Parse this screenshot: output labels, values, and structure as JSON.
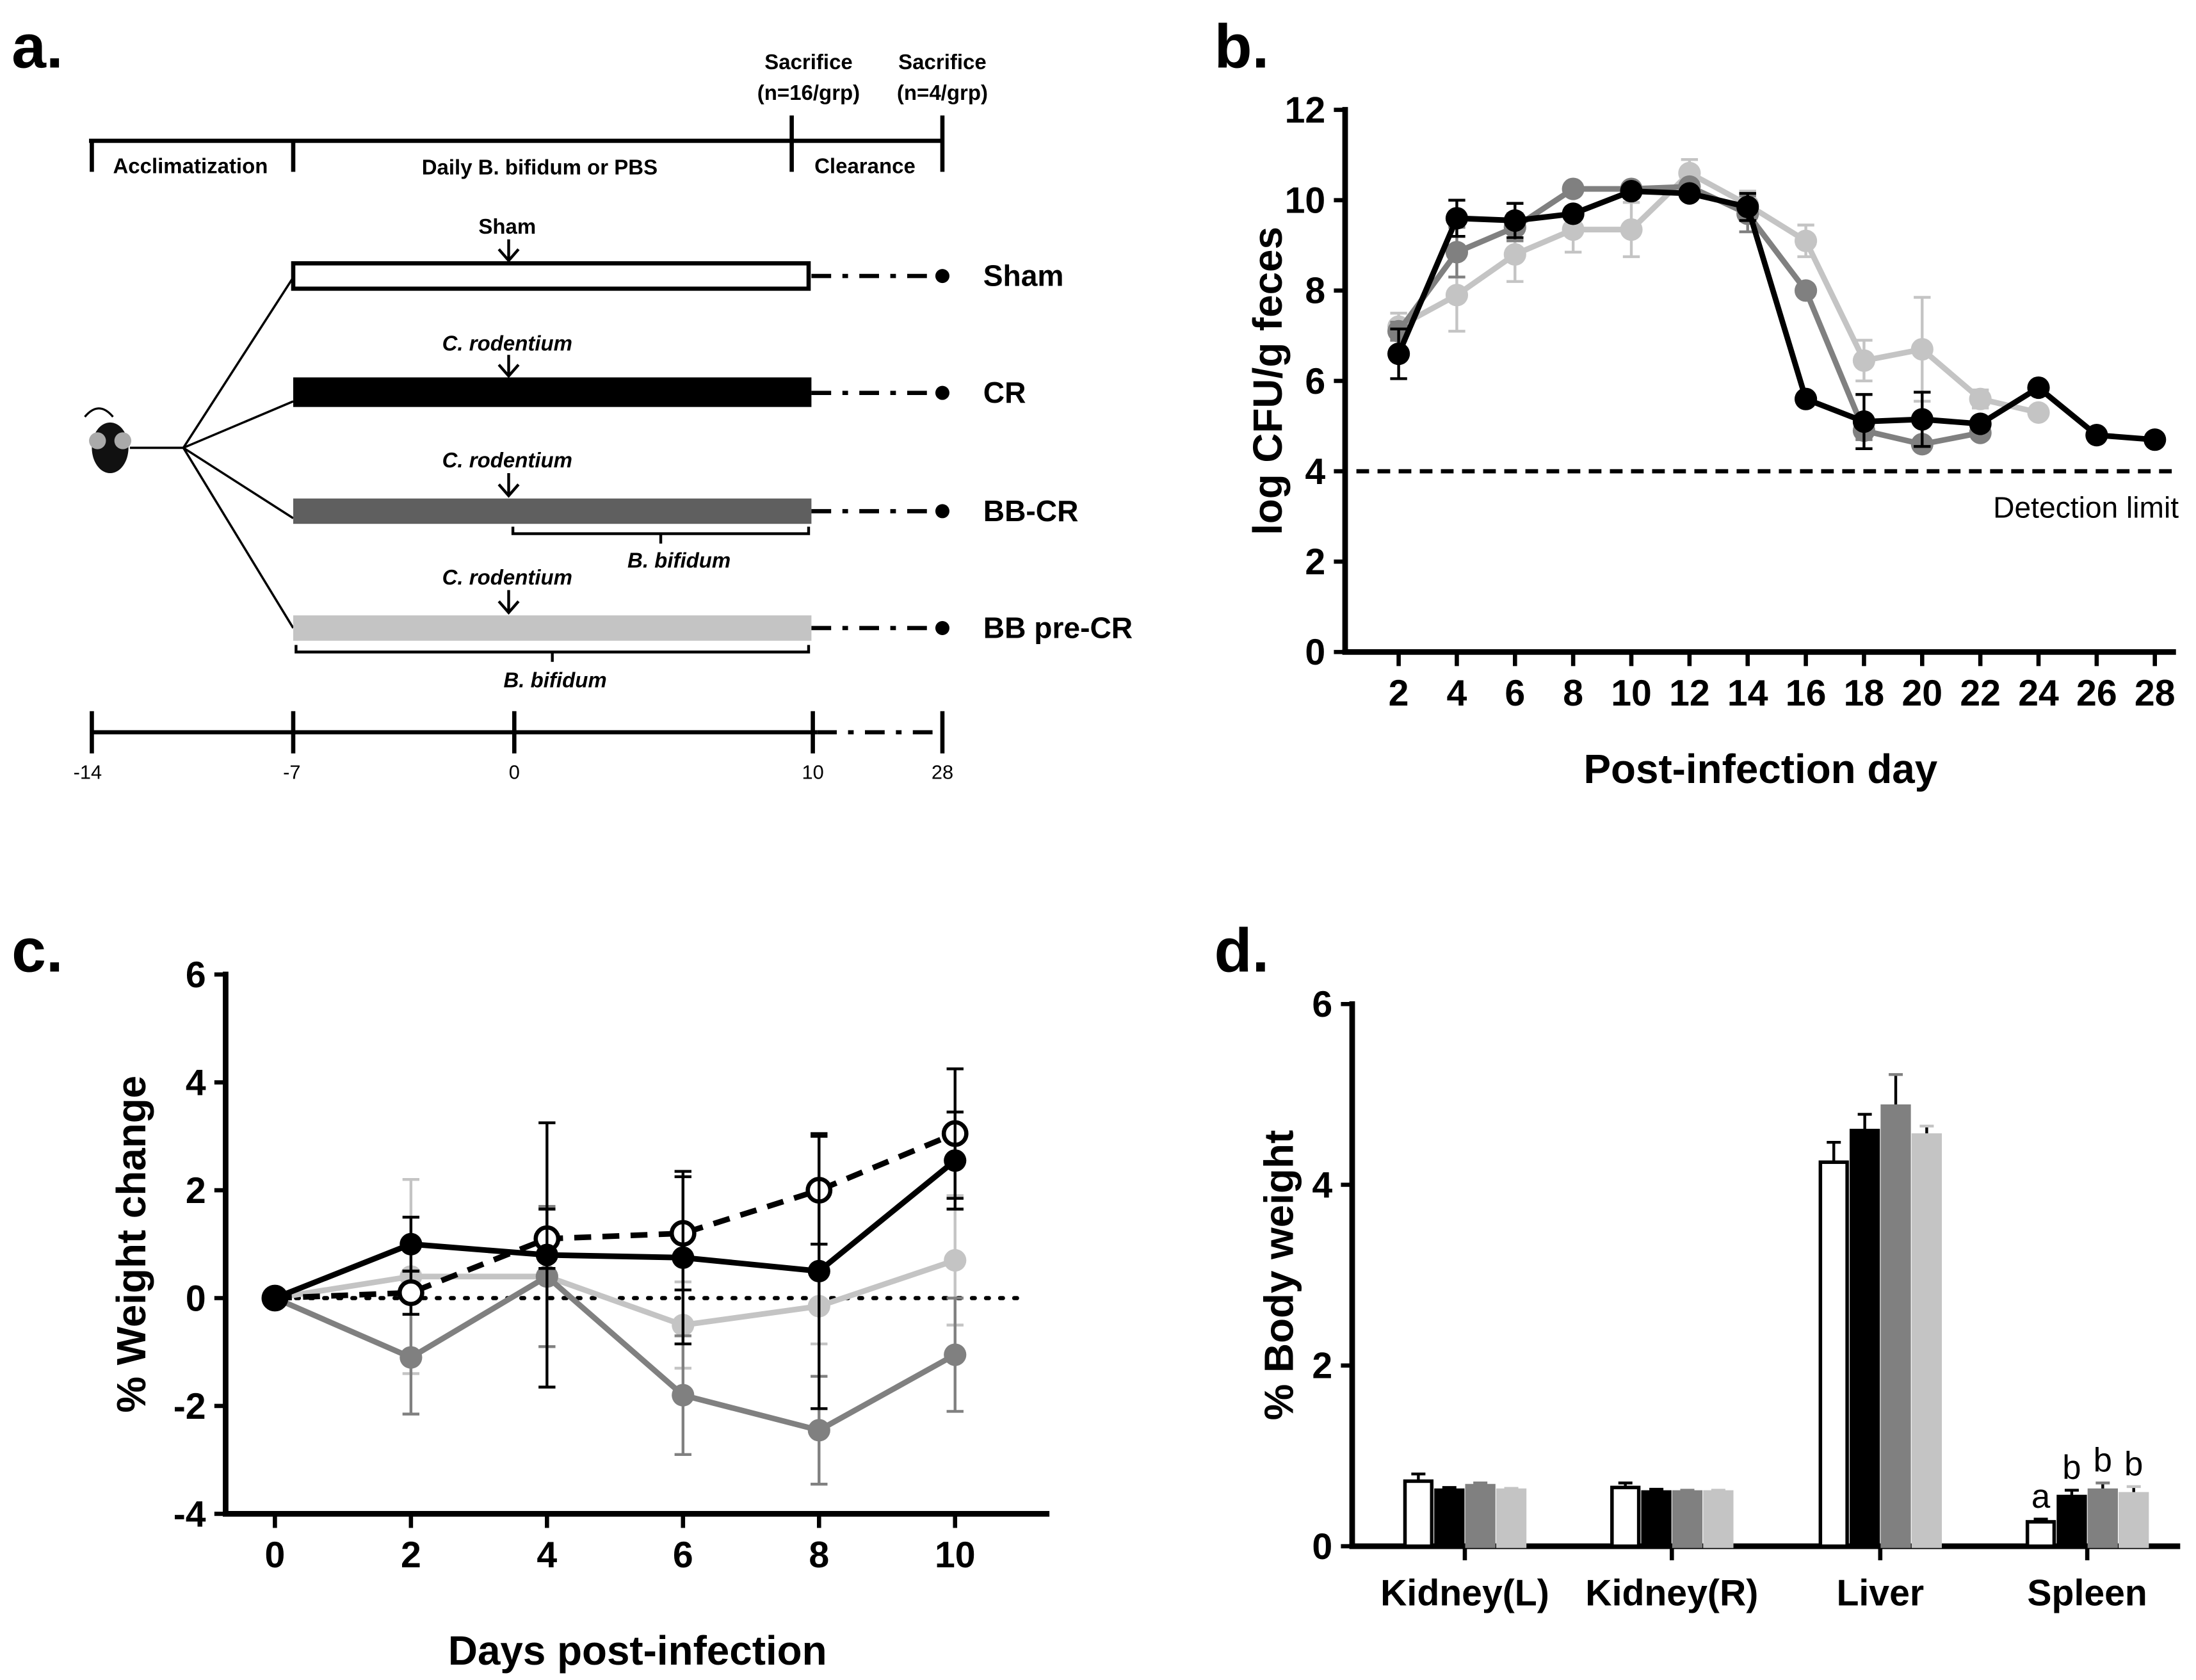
{
  "panel_labels": {
    "a": "a.",
    "b": "b.",
    "c": "c.",
    "d": "d."
  },
  "colors": {
    "sham": "#ffffff",
    "cr": "#000000",
    "bbcr": "#808080",
    "bbprecr": "#c4c4c4"
  },
  "schematic": {
    "sacrifice1": "Sacrifice",
    "sacrifice1_n": "(n=16/grp)",
    "sacrifice2": "Sacrifice",
    "sacrifice2_n": "(n=4/grp)",
    "phase_acclimatization": "Acclimatization",
    "phase_daily": "Daily B. bifidum or PBS",
    "phase_clearance": "Clearance",
    "arrow_sham": "Sham",
    "arrow_cr": "C. rodentium",
    "arrow_bbcr": "C. rodentium",
    "arrow_bbprecr": "C. rodentium",
    "bracket_bbcr": "B. bifidum",
    "bracket_bbprecr": "B. bifidum",
    "groups": [
      "Sham",
      "CR",
      "BB-CR",
      "BB pre-CR"
    ],
    "timeline_ticks": [
      "-14",
      "-7",
      "0",
      "10",
      "28"
    ]
  },
  "chart_data": [
    {
      "id": "b",
      "type": "line",
      "xlabel": "Post-infection day",
      "ylabel": "log CFU/g feces",
      "ylim": [
        0,
        12
      ],
      "yticks": [
        0,
        2,
        4,
        6,
        8,
        10,
        12
      ],
      "xticks": [
        2,
        4,
        6,
        8,
        10,
        12,
        14,
        16,
        18,
        20,
        22,
        24,
        26,
        28
      ],
      "annotation": "Detection limit",
      "reference_line": 4,
      "series": [
        {
          "name": "BB pre-CR",
          "color": "#c4c4c4",
          "x": [
            2,
            4,
            6,
            8,
            10,
            12,
            14,
            16,
            18,
            20,
            22,
            24
          ],
          "y": [
            7.2,
            7.9,
            8.8,
            9.35,
            9.35,
            10.6,
            9.9,
            9.1,
            6.45,
            6.7,
            5.6,
            5.3
          ],
          "err": [
            0.3,
            0.8,
            0.6,
            0.5,
            0.6,
            0.3,
            0.3,
            0.35,
            0.45,
            1.15,
            0.2,
            0.1
          ]
        },
        {
          "name": "BB-CR",
          "color": "#808080",
          "x": [
            2,
            4,
            6,
            8,
            10,
            12,
            14,
            16,
            18,
            20,
            22
          ],
          "y": [
            7.1,
            8.85,
            9.4,
            10.25,
            10.25,
            10.3,
            9.7,
            8.0,
            4.9,
            4.6,
            4.85
          ],
          "err": [
            0.2,
            0.55,
            0.3,
            0.1,
            0.1,
            0.1,
            0.4,
            0.1,
            0.2,
            0.1,
            0.1
          ]
        },
        {
          "name": "CR",
          "color": "#000000",
          "x": [
            2,
            4,
            6,
            8,
            10,
            12,
            14,
            16,
            18,
            20,
            22,
            24,
            26,
            28
          ],
          "y": [
            6.6,
            9.6,
            9.55,
            9.7,
            10.2,
            10.15,
            9.85,
            5.6,
            5.1,
            5.15,
            5.05,
            5.85,
            4.8,
            4.7
          ],
          "err": [
            0.55,
            0.4,
            0.38,
            0.1,
            0.1,
            0.1,
            0.3,
            0.05,
            0.6,
            0.6,
            0.05,
            0.05,
            0.05,
            0.05
          ]
        }
      ]
    },
    {
      "id": "c",
      "type": "line",
      "xlabel": "Days post-infection",
      "ylabel": "% Weight change",
      "ylim": [
        -4,
        6
      ],
      "yticks": [
        -4,
        -2,
        0,
        2,
        4,
        6
      ],
      "xticks": [
        0,
        2,
        4,
        6,
        8,
        10
      ],
      "reference_line": 0,
      "series": [
        {
          "name": "BB pre-CR",
          "color": "#c4c4c4",
          "marker": "filled",
          "dash": false,
          "x": [
            0,
            2,
            4,
            6,
            8,
            10
          ],
          "y": [
            0,
            0.4,
            0.4,
            -0.5,
            -0.15,
            0.7
          ],
          "err": [
            0,
            1.8,
            1.3,
            0.8,
            0.7,
            1.2
          ]
        },
        {
          "name": "BB-CR",
          "color": "#808080",
          "marker": "filled",
          "dash": false,
          "x": [
            0,
            2,
            4,
            6,
            8,
            10
          ],
          "y": [
            0,
            -1.1,
            0.4,
            -1.8,
            -2.45,
            -1.05
          ],
          "err": [
            0,
            1.05,
            1.3,
            1.1,
            1.0,
            1.05
          ]
        },
        {
          "name": "Sham",
          "color": "#000000",
          "marker": "open",
          "dash": true,
          "x": [
            0,
            2,
            4,
            6,
            8,
            10
          ],
          "y": [
            0,
            0.1,
            1.1,
            1.2,
            2.0,
            3.05
          ],
          "err": [
            0,
            0.4,
            0.55,
            1.05,
            1.0,
            1.2
          ]
        },
        {
          "name": "CR",
          "color": "#000000",
          "marker": "filled",
          "dash": false,
          "x": [
            0,
            2,
            4,
            6,
            8,
            10
          ],
          "y": [
            0,
            1.0,
            0.8,
            0.75,
            0.5,
            2.55
          ],
          "err": [
            0,
            0.5,
            2.45,
            1.6,
            2.55,
            0.9
          ]
        }
      ]
    },
    {
      "id": "d",
      "type": "bar",
      "xlabel": "",
      "ylabel": "% Body weight",
      "ylim": [
        0,
        6
      ],
      "yticks": [
        0,
        2,
        4,
        6
      ],
      "categories": [
        "Kidney(L)",
        "Kidney(R)",
        "Liver",
        "Spleen"
      ],
      "series": [
        {
          "name": "Sham",
          "color": "#ffffff",
          "values": [
            0.72,
            0.65,
            4.25,
            0.27
          ],
          "err": [
            0.08,
            0.05,
            0.22,
            0.03
          ]
        },
        {
          "name": "CR",
          "color": "#000000",
          "values": [
            0.62,
            0.6,
            4.6,
            0.55
          ],
          "err": [
            0.03,
            0.03,
            0.18,
            0.07
          ]
        },
        {
          "name": "BB-CR",
          "color": "#808080",
          "values": [
            0.67,
            0.6,
            4.87,
            0.62
          ],
          "err": [
            0.03,
            0.02,
            0.35,
            0.08
          ]
        },
        {
          "name": "BB pre-CR",
          "color": "#c4c4c4",
          "values": [
            0.62,
            0.6,
            4.55,
            0.58
          ],
          "err": [
            0.02,
            0.02,
            0.1,
            0.08
          ]
        }
      ],
      "annotations": {
        "Spleen": [
          "a",
          "b",
          "b",
          "b"
        ]
      }
    }
  ]
}
